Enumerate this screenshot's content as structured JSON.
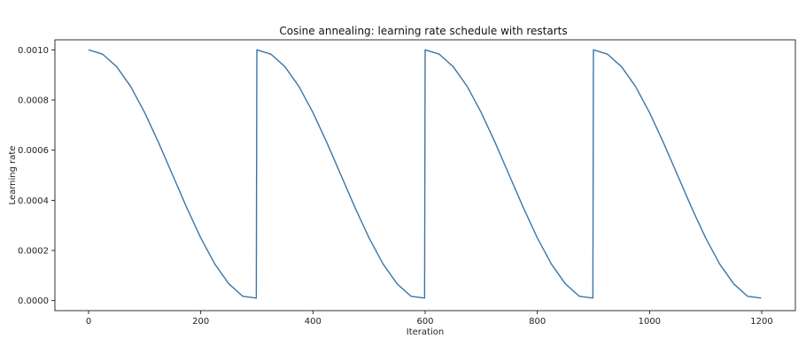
{
  "chart_data": {
    "type": "line",
    "title": "Cosine annealing: learning rate schedule with restarts",
    "xlabel": "Iteration",
    "ylabel": "Learning rate",
    "xlim": [
      -60,
      1260
    ],
    "ylim": [
      -4e-05,
      0.00104
    ],
    "xticks": [
      0,
      200,
      400,
      600,
      800,
      1000,
      1200
    ],
    "yticks": [
      0.0,
      0.0002,
      0.0004,
      0.0006,
      0.0008,
      0.001
    ],
    "ytick_labels": [
      "0.0000",
      "0.0002",
      "0.0004",
      "0.0006",
      "0.0008",
      "0.0010"
    ],
    "grid": false,
    "series": [
      {
        "color": "#3b76a8",
        "x": [
          0,
          25,
          50,
          75,
          100,
          125,
          150,
          175,
          200,
          225,
          250,
          275,
          299,
          300,
          325,
          350,
          375,
          400,
          425,
          450,
          475,
          500,
          525,
          550,
          575,
          599,
          600,
          625,
          650,
          675,
          700,
          725,
          750,
          775,
          800,
          825,
          850,
          875,
          899,
          900,
          925,
          950,
          975,
          1000,
          1025,
          1050,
          1075,
          1100,
          1125,
          1150,
          1175,
          1199
        ],
        "y": [
          0.001,
          0.000983,
          0.000933,
          0.000854,
          0.00075,
          0.000629,
          0.0005,
          0.000371,
          0.00025,
          0.000146,
          6.7e-05,
          1.7e-05,
          1e-05,
          0.001,
          0.000983,
          0.000933,
          0.000854,
          0.00075,
          0.000629,
          0.0005,
          0.000371,
          0.00025,
          0.000146,
          6.7e-05,
          1.7e-05,
          1e-05,
          0.001,
          0.000983,
          0.000933,
          0.000854,
          0.00075,
          0.000629,
          0.0005,
          0.000371,
          0.00025,
          0.000146,
          6.7e-05,
          1.7e-05,
          1e-05,
          0.001,
          0.000983,
          0.000933,
          0.000854,
          0.00075,
          0.000629,
          0.0005,
          0.000371,
          0.00025,
          0.000146,
          6.7e-05,
          1.7e-05,
          1e-05
        ]
      }
    ]
  }
}
